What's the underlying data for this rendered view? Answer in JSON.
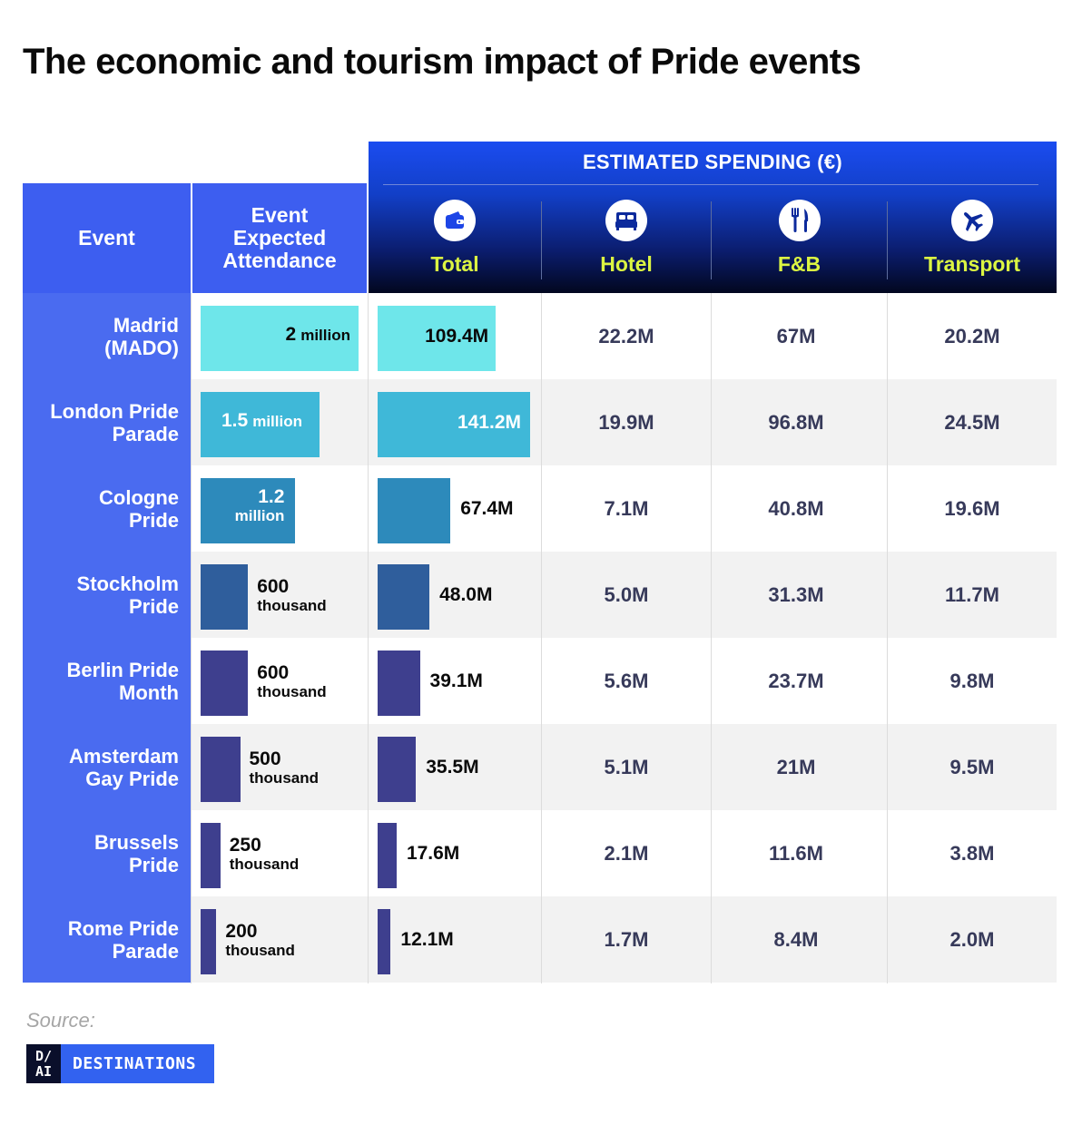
{
  "title": "The economic and tourism impact of Pride events",
  "header": {
    "event": "Event",
    "attendance": "Event\nExpected\nAttendance",
    "spending": "ESTIMATED SPENDING  (€)",
    "columns": [
      {
        "label": "Total",
        "icon": "wallet-icon"
      },
      {
        "label": "Hotel",
        "icon": "bed-icon"
      },
      {
        "label": "F&B",
        "icon": "fork-knife-icon"
      },
      {
        "label": "Transport",
        "icon": "plane-icon"
      }
    ]
  },
  "colors": {
    "header_blue": "#3d5ef0",
    "accent_yellow": "#dcf542",
    "row_alt": "#f2f2f2"
  },
  "chart_data": {
    "type": "table",
    "columns": [
      "Event",
      "Event Expected Attendance",
      "Total",
      "Hotel",
      "F&B",
      "Transport"
    ],
    "rows": [
      {
        "event": "Madrid\n(MADO)",
        "attendance": 2000000,
        "att_num": "2",
        "att_unit": "million",
        "total": 109.4,
        "total_label": "109.4M",
        "hotel": "22.2M",
        "fb": "67M",
        "transport": "20.2M",
        "color": "#6ee6ea",
        "event_color": "#4a6bf0"
      },
      {
        "event": "London Pride\nParade",
        "attendance": 1500000,
        "att_num": "1.5",
        "att_unit": "million",
        "total": 141.2,
        "total_label": "141.2M",
        "hotel": "19.9M",
        "fb": "96.8M",
        "transport": "24.5M",
        "color": "#3fb8d8",
        "event_color": "#4a6bf0"
      },
      {
        "event": "Cologne\nPride",
        "attendance": 1200000,
        "att_num": "1.2",
        "att_unit": "million",
        "total": 67.4,
        "total_label": "67.4M",
        "hotel": "7.1M",
        "fb": "40.8M",
        "transport": "19.6M",
        "color": "#2d8abb",
        "event_color": "#4a6bf0"
      },
      {
        "event": "Stockholm\nPride",
        "attendance": 600000,
        "att_num": "600",
        "att_unit": "thousand",
        "total": 48.0,
        "total_label": "48.0M",
        "hotel": "5.0M",
        "fb": "31.3M",
        "transport": "11.7M",
        "color": "#2f5e9c",
        "event_color": "#4a6bf0"
      },
      {
        "event": "Berlin Pride\nMonth",
        "attendance": 600000,
        "att_num": "600",
        "att_unit": "thousand",
        "total": 39.1,
        "total_label": "39.1M",
        "hotel": "5.6M",
        "fb": "23.7M",
        "transport": "9.8M",
        "color": "#3e3f8e",
        "event_color": "#4a6bf0"
      },
      {
        "event": "Amsterdam\nGay Pride",
        "attendance": 500000,
        "att_num": "500",
        "att_unit": "thousand",
        "total": 35.5,
        "total_label": "35.5M",
        "hotel": "5.1M",
        "fb": "21M",
        "transport": "9.5M",
        "color": "#3e3f8e",
        "event_color": "#4a6bf0"
      },
      {
        "event": "Brussels\nPride",
        "attendance": 250000,
        "att_num": "250",
        "att_unit": "thousand",
        "total": 17.6,
        "total_label": "17.6M",
        "hotel": "2.1M",
        "fb": "11.6M",
        "transport": "3.8M",
        "color": "#3e3f8e",
        "event_color": "#4a6bf0"
      },
      {
        "event": "Rome Pride\nParade",
        "attendance": 200000,
        "att_num": "200",
        "att_unit": "thousand",
        "total": 12.1,
        "total_label": "12.1M",
        "hotel": "1.7M",
        "fb": "8.4M",
        "transport": "2.0M",
        "color": "#3e3f8e",
        "event_color": "#4a6bf0"
      }
    ],
    "attendance_max": 2000000,
    "total_max": 141.2
  },
  "footer": {
    "source": "Source:",
    "logo_mark": "D/\nAI",
    "logo_text": "DESTINATIONS"
  }
}
